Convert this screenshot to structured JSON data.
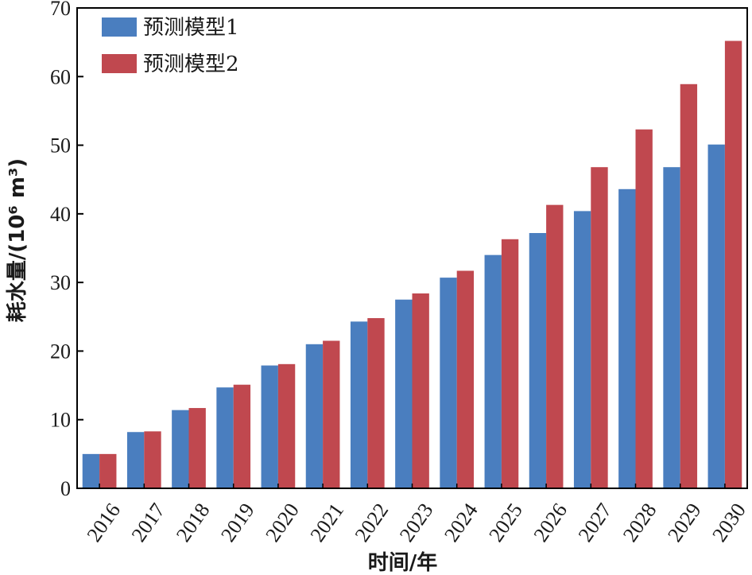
{
  "chart_data": {
    "type": "bar",
    "categories": [
      "2016",
      "2017",
      "2018",
      "2019",
      "2020",
      "2021",
      "2022",
      "2023",
      "2024",
      "2025",
      "2026",
      "2027",
      "2028",
      "2029",
      "2030"
    ],
    "series": [
      {
        "name": "预测模型1",
        "color": "#4a7ebf",
        "values": [
          5.0,
          8.2,
          11.4,
          14.7,
          17.9,
          21.0,
          24.3,
          27.5,
          30.7,
          34.0,
          37.2,
          40.4,
          43.6,
          46.8,
          50.1
        ]
      },
      {
        "name": "预测模型2",
        "color": "#c0484f",
        "values": [
          5.0,
          8.3,
          11.7,
          15.1,
          18.1,
          21.5,
          24.8,
          28.4,
          31.7,
          36.3,
          41.3,
          46.8,
          52.3,
          58.9,
          65.2
        ]
      }
    ],
    "xlabel": "时间/年",
    "ylabel": "耗水量/(10⁶ m³)",
    "ylim": [
      0,
      70
    ],
    "yticks": [
      0,
      10,
      20,
      30,
      40,
      50,
      60,
      70
    ],
    "grid": false,
    "legend": "top-left"
  }
}
